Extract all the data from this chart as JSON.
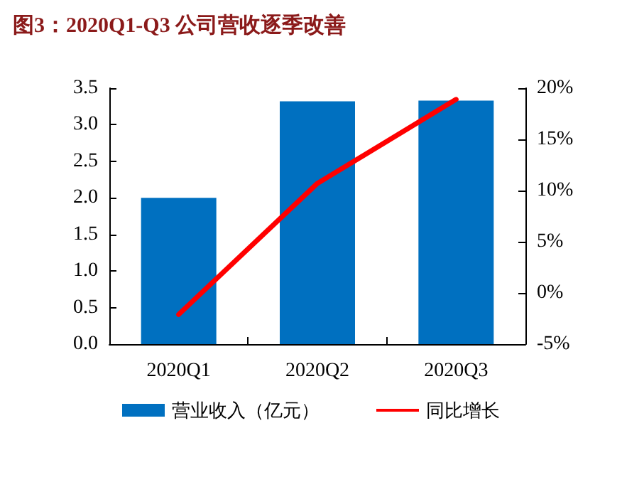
{
  "chart_data": {
    "type": "bar",
    "title": "图3：2020Q1-Q3 公司营收逐季改善",
    "categories": [
      "2020Q1",
      "2020Q2",
      "2020Q3"
    ],
    "series": [
      {
        "name": "营业收入（亿元）",
        "color": "#0070c0",
        "values": [
          2.0,
          3.32,
          3.33
        ]
      },
      {
        "name": "同比增长",
        "type": "line",
        "axis": "y2",
        "color": "#ff0000",
        "values": [
          -2.1,
          10.7,
          18.9
        ]
      }
    ],
    "ylim": [
      0,
      3.5
    ],
    "yticks": [
      {
        "value": 0,
        "label": "0.0"
      },
      {
        "value": 0.5,
        "label": "0.5"
      },
      {
        "value": 1,
        "label": "1.0"
      },
      {
        "value": 1.5,
        "label": "1.5"
      },
      {
        "value": 2,
        "label": "2.0"
      },
      {
        "value": 2.5,
        "label": "2.5"
      },
      {
        "value": 3,
        "label": "3.0"
      },
      {
        "value": 3.5,
        "label": "3.5"
      }
    ],
    "y2lim": [
      -5,
      20
    ],
    "y2ticks": [
      {
        "value": -5,
        "label": "-5%"
      },
      {
        "value": 0,
        "label": "0%"
      },
      {
        "value": 5,
        "label": "5%"
      },
      {
        "value": 10,
        "label": "10%"
      },
      {
        "value": 15,
        "label": "15%"
      },
      {
        "value": 20,
        "label": "20%"
      }
    ],
    "grid": false,
    "legend": "bottom",
    "marker": "none"
  }
}
